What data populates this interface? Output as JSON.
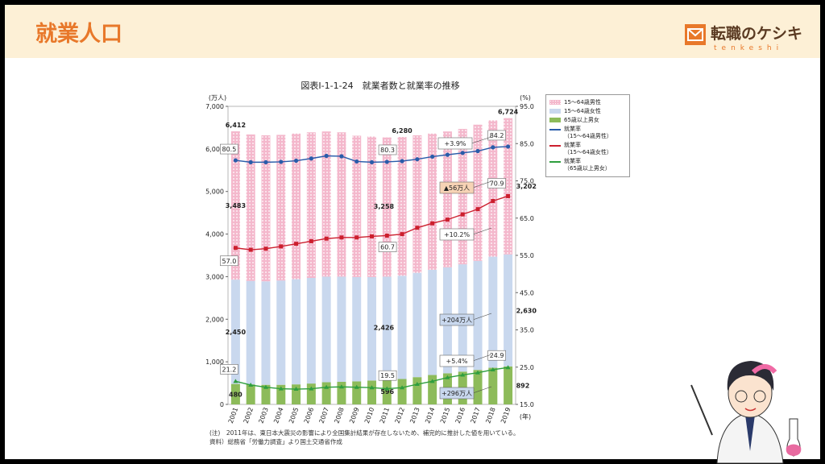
{
  "header": {
    "title": "就業人口",
    "logo": "転職のケシキ",
    "logo_sub": "tenkeshi"
  },
  "chart_data": {
    "type": "bar",
    "stacked": true,
    "title": "図表I-1-1-24　就業者数と就業率の推移",
    "y_label": "(万人)",
    "y2_label": "(%)",
    "x_label": "(年)",
    "categories": [
      "2001",
      "2002",
      "2003",
      "2004",
      "2005",
      "2006",
      "2007",
      "2008",
      "2009",
      "2010",
      "2011",
      "2012",
      "2013",
      "2014",
      "2015",
      "2016",
      "2017",
      "2018",
      "2019"
    ],
    "ylim": [
      0,
      7000
    ],
    "yticks": [
      0,
      {
        "value": 1000,
        "label": "1,000"
      },
      {
        "value": 2000,
        "label": "2,000"
      },
      {
        "value": 3000,
        "label": "3,000"
      },
      {
        "value": 4000,
        "label": "4,000"
      },
      {
        "value": 5000,
        "label": "5,000"
      },
      {
        "value": 6000,
        "label": "6,000"
      },
      {
        "value": 7000,
        "label": "7,000"
      }
    ],
    "y2lim": [
      15,
      95
    ],
    "y2ticks": [
      {
        "value": 15,
        "label": "15.0"
      },
      {
        "value": 25,
        "label": "25.0"
      },
      {
        "value": 35,
        "label": "35.0"
      },
      {
        "value": 45,
        "label": "45.0"
      },
      {
        "value": 55,
        "label": "55.0"
      },
      {
        "value": 65,
        "label": "65.0"
      },
      {
        "value": 75,
        "label": "75.0"
      },
      {
        "value": 85,
        "label": "85.0"
      },
      {
        "value": 95,
        "label": "95.0"
      }
    ],
    "total_labels": [
      "6,412",
      null,
      null,
      null,
      null,
      null,
      null,
      null,
      null,
      null,
      null,
      "6,280",
      null,
      null,
      null,
      null,
      null,
      null,
      "6,724"
    ],
    "series": [
      {
        "name": "15～64歳男性",
        "type": "bar",
        "color": "#f4b8cc",
        "values": [
          3483,
          3440,
          3430,
          3420,
          3420,
          3420,
          3410,
          3390,
          3320,
          3300,
          3270,
          3258,
          3230,
          3200,
          3190,
          3180,
          3200,
          3200,
          3202
        ],
        "value_labels": [
          "3,483",
          null,
          null,
          null,
          null,
          null,
          null,
          null,
          null,
          null,
          null,
          "3,258",
          null,
          null,
          null,
          null,
          null,
          null,
          "3,202"
        ]
      },
      {
        "name": "15～64歳女性",
        "type": "bar",
        "color": "#c9d8ee",
        "values": [
          2450,
          2430,
          2430,
          2450,
          2470,
          2480,
          2480,
          2470,
          2450,
          2430,
          2430,
          2426,
          2450,
          2470,
          2490,
          2520,
          2560,
          2610,
          2630
        ],
        "value_labels": [
          "2,450",
          null,
          null,
          null,
          null,
          null,
          null,
          null,
          null,
          null,
          null,
          "2,426",
          null,
          null,
          null,
          null,
          null,
          null,
          "2,630"
        ]
      },
      {
        "name": "65歳以上男女",
        "type": "bar",
        "color": "#8dbb5a",
        "values": [
          480,
          470,
          460,
          460,
          470,
          490,
          520,
          530,
          540,
          560,
          570,
          596,
          640,
          690,
          730,
          770,
          810,
          860,
          892
        ],
        "value_labels": [
          "480",
          null,
          null,
          null,
          null,
          null,
          null,
          null,
          null,
          null,
          null,
          "596",
          null,
          null,
          null,
          null,
          null,
          null,
          "892"
        ]
      },
      {
        "name": "就業率\n（15～64歳男性）",
        "type": "line",
        "axis": "y2",
        "color": "#2a5caa",
        "values": [
          80.5,
          80.0,
          80.0,
          80.1,
          80.4,
          81.0,
          81.7,
          81.6,
          80.2,
          80.0,
          80.1,
          80.3,
          80.8,
          81.5,
          82.0,
          82.5,
          83.0,
          84.0,
          84.2
        ],
        "value_labels": [
          "80.5",
          null,
          null,
          null,
          null,
          null,
          null,
          null,
          null,
          null,
          null,
          "80.3",
          null,
          null,
          null,
          null,
          null,
          null,
          "84.2"
        ]
      },
      {
        "name": "就業率\n（15～64歳女性）",
        "type": "line",
        "axis": "y2",
        "color": "#cc1f2e",
        "values": [
          57.0,
          56.5,
          56.8,
          57.4,
          58.1,
          58.8,
          59.5,
          59.8,
          59.8,
          60.1,
          60.3,
          60.7,
          62.4,
          63.6,
          64.6,
          66.0,
          67.4,
          69.6,
          70.9
        ],
        "value_labels": [
          "57.0",
          null,
          null,
          null,
          null,
          null,
          null,
          null,
          null,
          null,
          null,
          "60.7",
          null,
          null,
          null,
          null,
          null,
          null,
          "70.9"
        ]
      },
      {
        "name": "就業率\n（65歳以上男女）",
        "type": "line",
        "axis": "y2",
        "color": "#2e9e3e",
        "values": [
          21.2,
          20.2,
          19.6,
          19.2,
          19.1,
          19.2,
          19.6,
          19.7,
          19.6,
          19.5,
          19.2,
          19.5,
          20.4,
          21.2,
          22.2,
          22.9,
          23.5,
          24.3,
          24.9
        ],
        "value_labels": [
          "21.2",
          null,
          null,
          null,
          null,
          null,
          null,
          null,
          null,
          null,
          null,
          "19.5",
          null,
          null,
          null,
          null,
          null,
          null,
          "24.9"
        ]
      }
    ],
    "annotations": [
      "+3.9%",
      "▲56万人",
      "+10.2%",
      "+204万人",
      "+5.4%",
      "+296万人"
    ],
    "notes": [
      "(注)　2011年は、東日本大震災の影響により全国集計結果が存在しないため、補完的に推計した値を用いている。",
      "資料）総務省「労働力調査」より国土交通省作成"
    ]
  }
}
